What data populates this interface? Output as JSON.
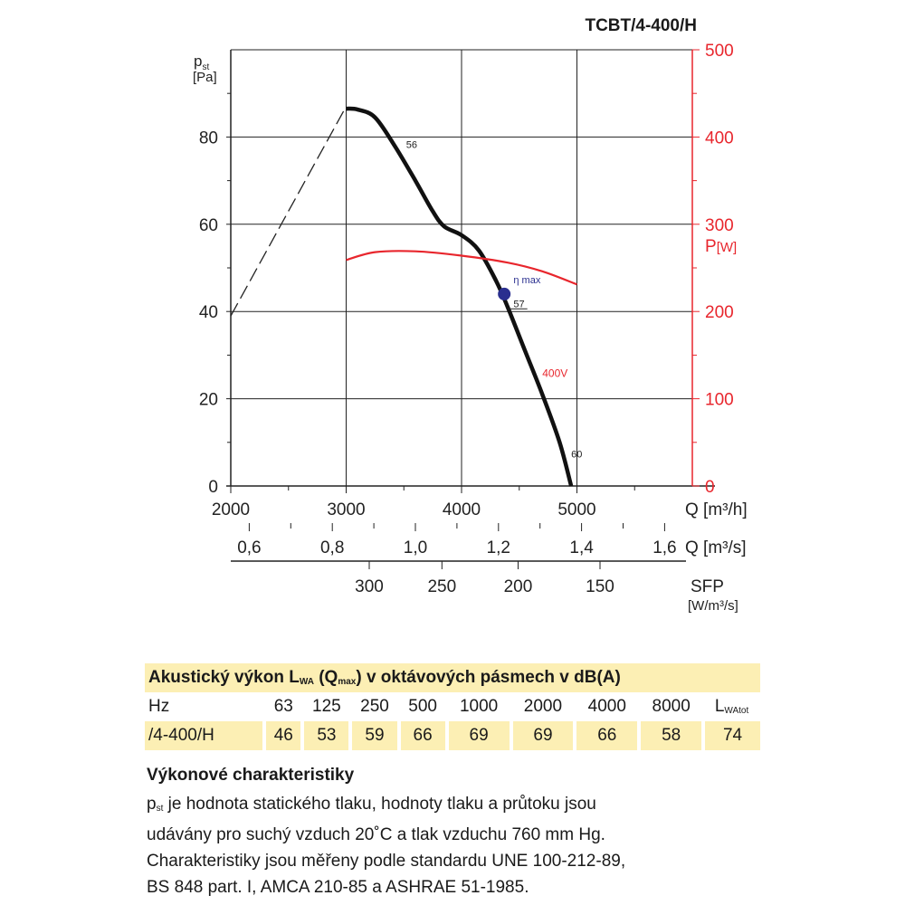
{
  "header": {
    "model": "TCBT/4-400/H"
  },
  "chart_data": {
    "type": "line",
    "title": "TCBT/4-400/H",
    "x_axis": {
      "label": "Q [m³/h]",
      "range": [
        2000,
        6000
      ],
      "ticks": [
        2000,
        3000,
        4000,
        5000
      ]
    },
    "x_axis_secondary": {
      "label": "Q [m³/s]",
      "ticks": [
        "0,6",
        "0,8",
        "1,0",
        "1,2",
        "1,4",
        "1,6"
      ],
      "tick_values_m3h": [
        2160,
        2880,
        3600,
        4320,
        5040,
        5760
      ]
    },
    "sfp_axis": {
      "label": "SFP",
      "unit": "[W/m³/s]",
      "ticks": [
        "300",
        "250",
        "200",
        "150"
      ],
      "tick_positions_m3h": [
        3200,
        3830,
        4490,
        5200
      ]
    },
    "y_axis_left": {
      "label_main": "p",
      "label_sub": "st",
      "unit": "[Pa]",
      "range": [
        0,
        100
      ],
      "ticks": [
        0,
        20,
        40,
        60,
        80
      ]
    },
    "y_axis_right": {
      "label_main": "P",
      "unit": "[W]",
      "range": [
        0,
        500
      ],
      "ticks": [
        0,
        100,
        200,
        300,
        400,
        500
      ]
    },
    "series": [
      {
        "name": "pressure",
        "axis": "left",
        "x": [
          3000,
          3100,
          3250,
          3420,
          3600,
          3750,
          3850,
          4000,
          4150,
          4300,
          4400,
          4550,
          4700,
          4850,
          4950
        ],
        "y": [
          86.5,
          86.3,
          84.5,
          78,
          70,
          63,
          59.5,
          57.5,
          54,
          47,
          41,
          31,
          21,
          10,
          0
        ]
      },
      {
        "name": "stall",
        "axis": "left",
        "style": "dashed",
        "x": [
          2000,
          3000
        ],
        "y": [
          39,
          87
        ]
      },
      {
        "name": "400V",
        "axis": "right",
        "x": [
          3000,
          3250,
          3600,
          4000,
          4400,
          4700,
          5000
        ],
        "y": [
          259,
          268,
          269,
          264,
          256,
          246,
          231
        ]
      }
    ],
    "annotations": [
      {
        "text": "56",
        "x": 3520,
        "y": 77.5
      },
      {
        "text": "57",
        "x": 4450,
        "y": 41
      },
      {
        "text": "60",
        "x": 4950,
        "y": 6.5
      },
      {
        "text": "400V",
        "x": 4700,
        "y": 25
      },
      {
        "text": "η max",
        "x": 4450,
        "y": 46.5
      }
    ],
    "eta_max_point": {
      "x": 4370,
      "y": 44
    },
    "grid": true
  },
  "acoustic": {
    "title_main": "Akustický výkon L",
    "title_sub": "WA",
    "title_mid": " (Q",
    "title_sub2": "max",
    "title_end": ") v oktávových pásmech v dB(A)",
    "hz_label": "Hz",
    "bands": [
      "63",
      "125",
      "250",
      "500",
      "1000",
      "2000",
      "4000",
      "8000"
    ],
    "total_label_main": "L",
    "total_label_sub": "WAtot",
    "row_label": "/4-400/H",
    "values": [
      "46",
      "53",
      "59",
      "66",
      "69",
      "69",
      "66",
      "58",
      "74"
    ]
  },
  "performance": {
    "heading": "Výkonové charakteristiky",
    "p_main": "p",
    "p_sub": "st",
    "line1": " je hodnota statického tlaku, hodnoty tlaku a průtoku jsou",
    "line2": "udávány pro suchý vzduch 20˚C a tlak vzduchu 760 mm Hg.",
    "line3": "Charakteristiky jsou měřeny podle standardu UNE 100-212-89,",
    "line4": "BS 848 part. I, AMCA 210-85 a ASHRAE 51-1985."
  },
  "colors": {
    "power": "#e8262d",
    "eta": "#2a2f8f",
    "curve": "#111111",
    "table_bg": "#fcefb4"
  }
}
